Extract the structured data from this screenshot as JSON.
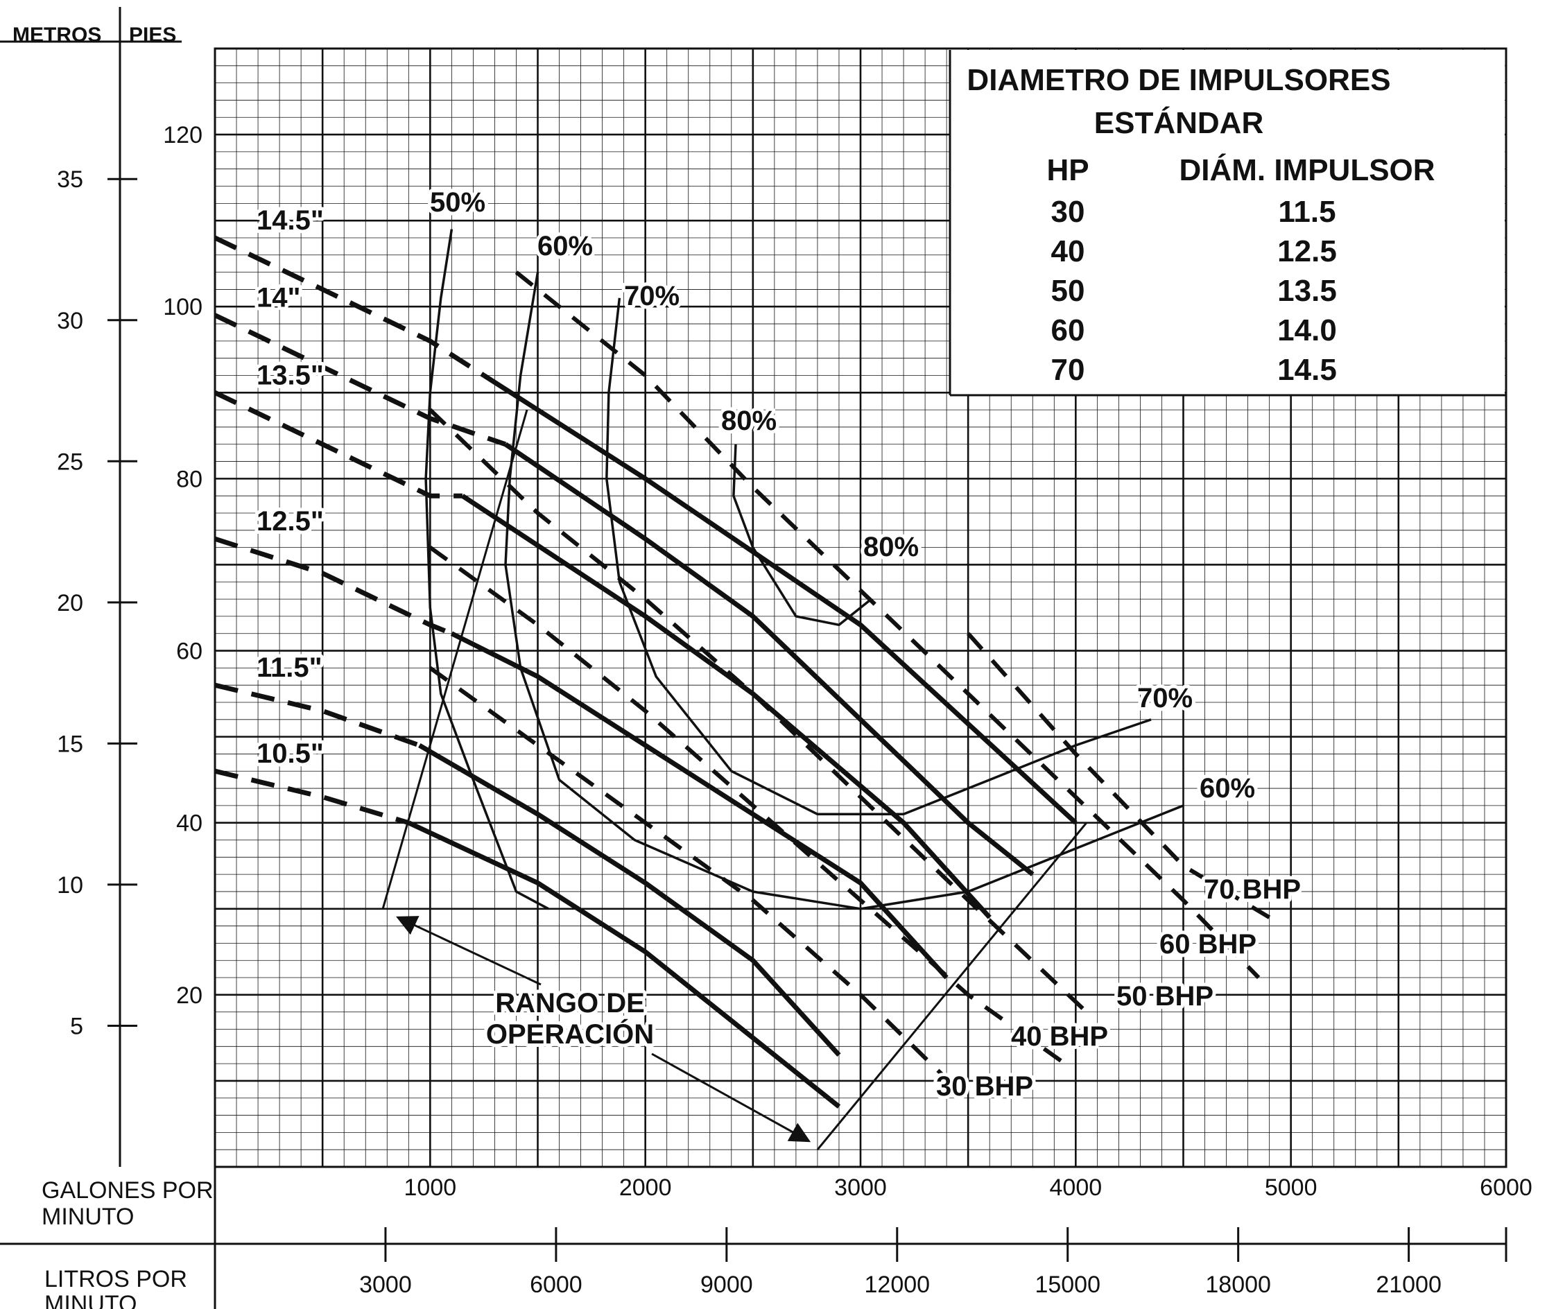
{
  "chart_data": {
    "type": "line",
    "title": "",
    "xlabel": "GALONES POR MINUTO",
    "x2label": "LITROS POR MINUTO",
    "ylabel_left_outer": "METROS",
    "ylabel_left_inner": "PIES",
    "xlim": [
      0,
      6000
    ],
    "ylim": [
      0,
      130
    ],
    "grid": true,
    "x_ticks": [
      1000,
      2000,
      3000,
      4000,
      5000,
      6000
    ],
    "x2_ticks": [
      3000,
      6000,
      9000,
      12000,
      15000,
      18000,
      21000
    ],
    "y_ft_ticks": [
      20,
      40,
      60,
      80,
      100,
      120
    ],
    "y_m_ticks": [
      5,
      10,
      15,
      20,
      25,
      30,
      35
    ],
    "impeller_curves": [
      {
        "label": "14.5\"",
        "solid_start_gpm": 1250,
        "points": [
          [
            0,
            108
          ],
          [
            500,
            102
          ],
          [
            1000,
            96
          ],
          [
            1250,
            92
          ],
          [
            2000,
            80
          ],
          [
            3000,
            63
          ],
          [
            4000,
            40
          ]
        ]
      },
      {
        "label": "14\"",
        "solid_start_gpm": 1350,
        "points": [
          [
            0,
            99
          ],
          [
            500,
            93
          ],
          [
            1000,
            87
          ],
          [
            1350,
            84
          ],
          [
            2000,
            73
          ],
          [
            2500,
            64
          ],
          [
            3500,
            40
          ],
          [
            3800,
            34
          ]
        ]
      },
      {
        "label": "13.5\"",
        "solid_start_gpm": 1150,
        "points": [
          [
            0,
            90
          ],
          [
            500,
            84
          ],
          [
            1000,
            78
          ],
          [
            1150,
            78
          ],
          [
            2000,
            64
          ],
          [
            2500,
            55
          ],
          [
            3200,
            40
          ],
          [
            3600,
            29
          ]
        ]
      },
      {
        "label": "12.5\"",
        "solid_start_gpm": 1100,
        "points": [
          [
            0,
            73
          ],
          [
            500,
            69
          ],
          [
            1000,
            63
          ],
          [
            1100,
            62
          ],
          [
            1500,
            57
          ],
          [
            2000,
            49
          ],
          [
            2500,
            41
          ],
          [
            3000,
            33
          ],
          [
            3400,
            22
          ]
        ]
      },
      {
        "label": "11.5\"",
        "solid_start_gpm": 950,
        "points": [
          [
            0,
            56
          ],
          [
            500,
            53
          ],
          [
            950,
            49
          ],
          [
            1500,
            41
          ],
          [
            2000,
            33
          ],
          [
            2500,
            24
          ],
          [
            2900,
            13
          ]
        ]
      },
      {
        "label": "10.5\"",
        "solid_start_gpm": 900,
        "points": [
          [
            0,
            46
          ],
          [
            500,
            43
          ],
          [
            900,
            40
          ],
          [
            1500,
            33
          ],
          [
            2000,
            25
          ],
          [
            2500,
            15
          ],
          [
            2900,
            7
          ]
        ]
      }
    ],
    "efficiency_curves": [
      {
        "label": "50%",
        "points": [
          [
            1100,
            109
          ],
          [
            1050,
            101
          ],
          [
            1000,
            90
          ],
          [
            980,
            80
          ],
          [
            1000,
            65
          ],
          [
            1050,
            55
          ],
          [
            1200,
            45
          ],
          [
            1400,
            32
          ],
          [
            1550,
            30
          ]
        ]
      },
      {
        "label": "60%",
        "points": [
          [
            1500,
            104
          ],
          [
            1420,
            92
          ],
          [
            1370,
            80
          ],
          [
            1350,
            70
          ],
          [
            1420,
            58
          ],
          [
            1600,
            45
          ],
          [
            1950,
            38
          ],
          [
            2500,
            32
          ],
          [
            3000,
            30
          ],
          [
            3500,
            32
          ],
          [
            4000,
            37
          ],
          [
            4500,
            42
          ]
        ]
      },
      {
        "label": "70%",
        "points": [
          [
            1880,
            101
          ],
          [
            1830,
            90
          ],
          [
            1820,
            80
          ],
          [
            1880,
            68
          ],
          [
            2050,
            57
          ],
          [
            2400,
            46
          ],
          [
            2800,
            41
          ],
          [
            3200,
            41
          ],
          [
            3600,
            45
          ],
          [
            4000,
            49
          ],
          [
            4350,
            52
          ]
        ]
      },
      {
        "label": "80%",
        "points": [
          [
            2420,
            84
          ],
          [
            2410,
            78
          ],
          [
            2500,
            72
          ],
          [
            2700,
            64
          ],
          [
            2900,
            63
          ],
          [
            3050,
            66
          ]
        ]
      }
    ],
    "bhp_lines": [
      {
        "label": "30 BHP",
        "points": [
          [
            1000,
            58
          ],
          [
            1500,
            49
          ],
          [
            2000,
            40
          ],
          [
            2500,
            31
          ],
          [
            3000,
            20
          ],
          [
            3450,
            9
          ]
        ]
      },
      {
        "label": "40 BHP",
        "points": [
          [
            1000,
            72
          ],
          [
            1500,
            63
          ],
          [
            2000,
            53
          ],
          [
            2500,
            42
          ],
          [
            3000,
            31
          ],
          [
            3500,
            20
          ],
          [
            3950,
            12
          ]
        ]
      },
      {
        "label": "50 BHP",
        "points": [
          [
            1000,
            88
          ],
          [
            1500,
            76
          ],
          [
            2000,
            66
          ],
          [
            2500,
            55
          ],
          [
            3000,
            43
          ],
          [
            3500,
            31
          ],
          [
            4050,
            18
          ]
        ]
      },
      {
        "label": "60 BHP",
        "points": [
          [
            1400,
            104
          ],
          [
            2000,
            92
          ],
          [
            2500,
            79
          ],
          [
            3000,
            67
          ],
          [
            3500,
            55
          ],
          [
            4000,
            43
          ],
          [
            4500,
            31
          ],
          [
            4850,
            22
          ]
        ]
      },
      {
        "label": "70 BHP",
        "points": [
          [
            3500,
            62
          ],
          [
            4000,
            48
          ],
          [
            4500,
            35
          ],
          [
            4900,
            29
          ]
        ]
      }
    ],
    "operating_range": {
      "label": "RANGO DE OPERACIÓN",
      "left_boundary": [
        [
          780,
          30
        ],
        [
          1450,
          88
        ]
      ],
      "right_boundary": [
        [
          2800,
          2
        ],
        [
          4050,
          40
        ]
      ]
    },
    "legend_table": {
      "title_line1": "DIAMETRO DE IMPULSORES",
      "title_line2": "ESTÁNDAR",
      "headers": [
        "HP",
        "DIÁM. IMPULSOR"
      ],
      "rows": [
        [
          "30",
          "11.5"
        ],
        [
          "40",
          "12.5"
        ],
        [
          "50",
          "13.5"
        ],
        [
          "60",
          "14.0"
        ],
        [
          "70",
          "14.5"
        ]
      ]
    }
  }
}
